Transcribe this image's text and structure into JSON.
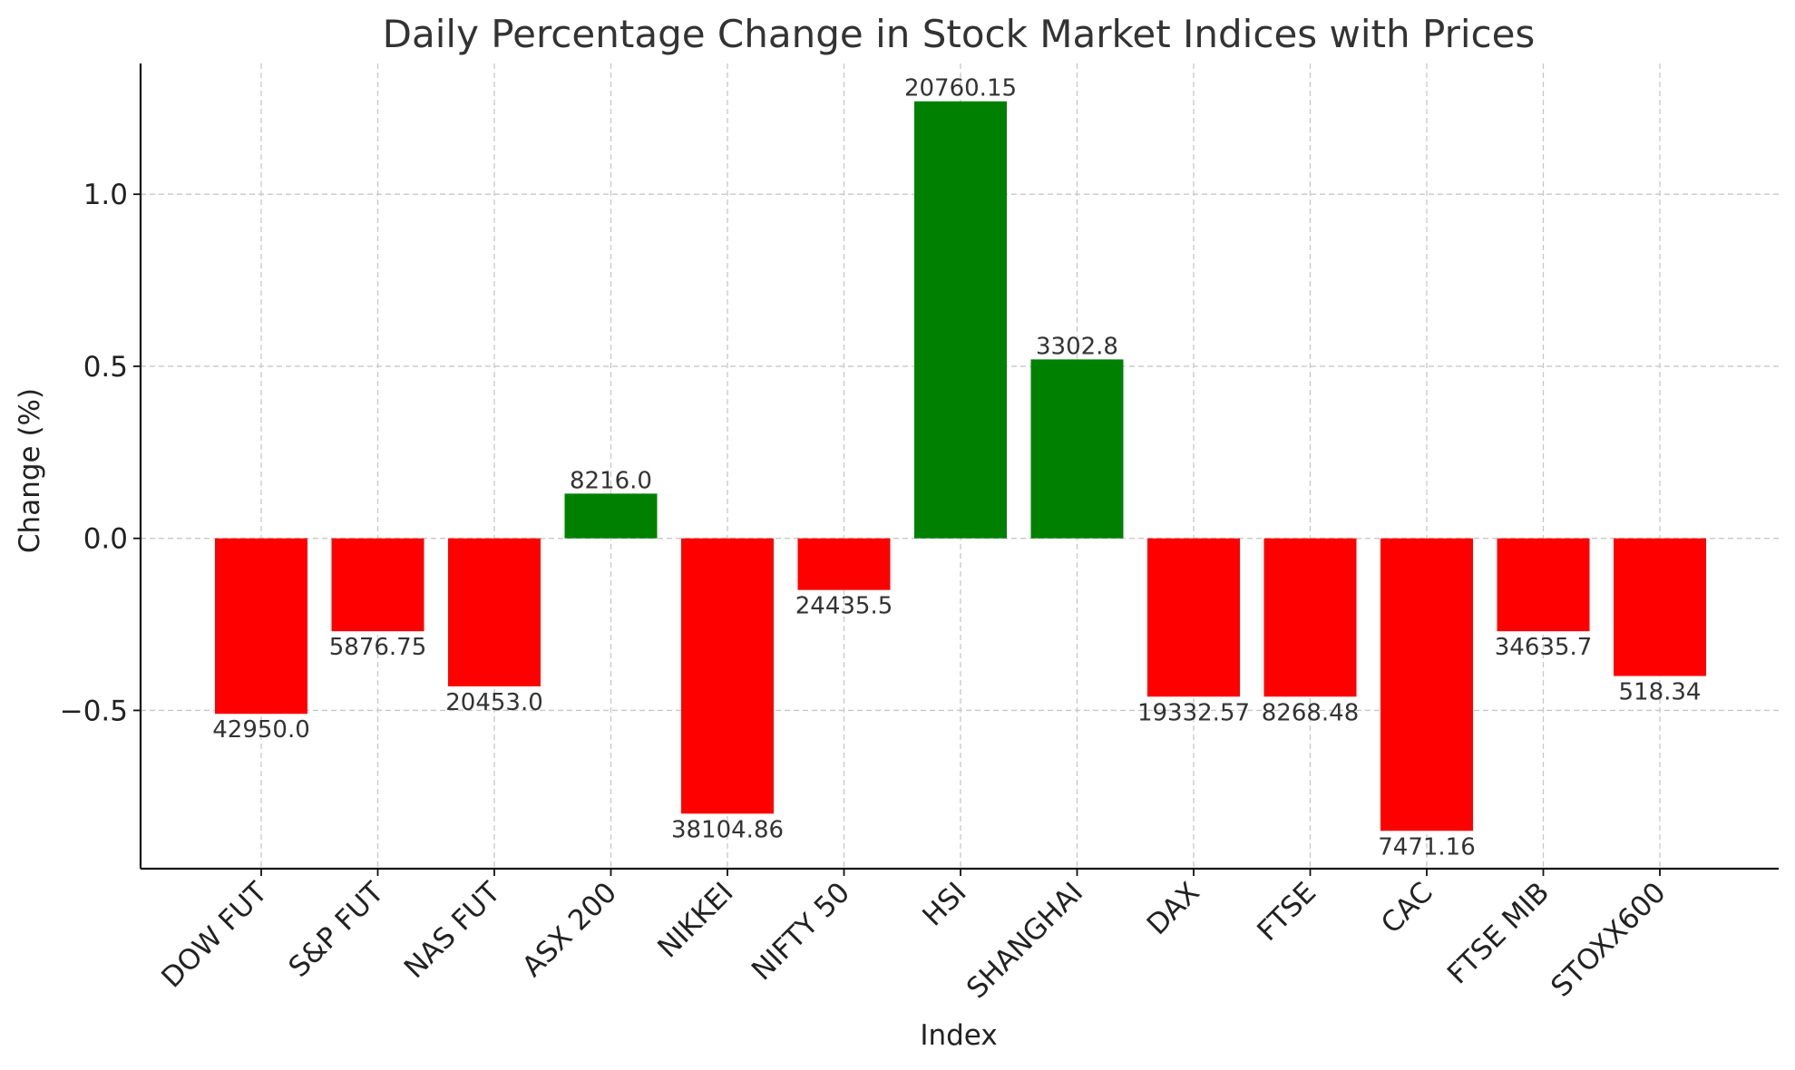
{
  "chart_data": {
    "type": "bar",
    "title": "Daily Percentage Change in Stock Market Indices with Prices",
    "xlabel": "Index",
    "ylabel": "Change (%)",
    "ylim": [
      -0.96,
      1.38
    ],
    "yticks": [
      -0.5,
      0.0,
      0.5,
      1.0
    ],
    "ytick_labels": [
      "−0.5",
      "0.0",
      "0.5",
      "1.0"
    ],
    "grid": true,
    "categories": [
      "DOW FUT",
      "S&P FUT",
      "NAS FUT",
      "ASX 200",
      "NIKKEI",
      "NIFTY 50",
      "HSI",
      "SHANGHAI",
      "DAX",
      "FTSE",
      "CAC",
      "FTSE MIB",
      "STOXX600"
    ],
    "values": [
      -0.51,
      -0.27,
      -0.43,
      0.13,
      -0.8,
      -0.15,
      1.27,
      0.52,
      -0.46,
      -0.46,
      -0.85,
      -0.27,
      -0.4
    ],
    "price_labels": [
      "42950.0",
      "5876.75",
      "20453.0",
      "8216.0",
      "38104.86",
      "24435.5",
      "20760.15",
      "3302.8",
      "19332.57",
      "8268.48",
      "7471.16",
      "34635.7",
      "518.34"
    ],
    "colors": {
      "positive": "#008000",
      "negative": "#ff0000"
    }
  }
}
